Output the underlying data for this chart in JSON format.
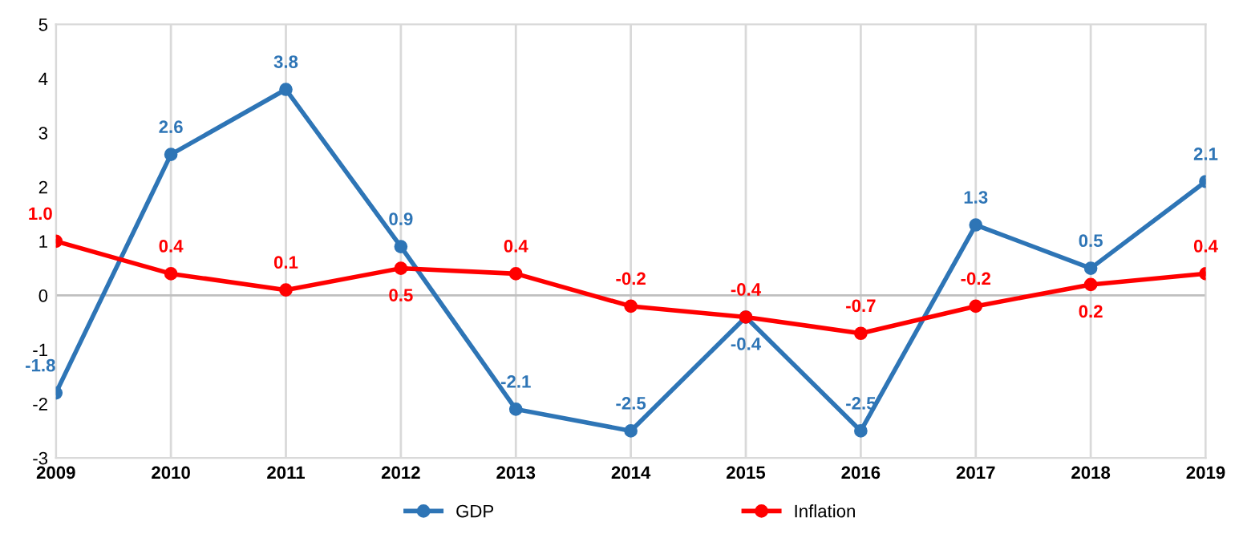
{
  "chart_data": {
    "type": "line",
    "categories": [
      "2009",
      "2010",
      "2011",
      "2012",
      "2013",
      "2014",
      "2015",
      "2016",
      "2017",
      "2018",
      "2019"
    ],
    "series": [
      {
        "name": "GDP",
        "color": "#2e75b6",
        "values": [
          -1.8,
          2.6,
          3.8,
          0.9,
          -2.1,
          -2.5,
          -0.4,
          -2.5,
          1.3,
          0.5,
          2.1
        ],
        "value_labels": [
          "-1.8",
          "2.6",
          "3.8",
          "0.9",
          "-2.1",
          "-2.5",
          "-0.4",
          "-2.5",
          "1.3",
          "0.5",
          "2.1"
        ]
      },
      {
        "name": "Inflation",
        "color": "#ff0000",
        "values": [
          1.0,
          0.4,
          0.1,
          0.5,
          0.4,
          -0.2,
          -0.4,
          -0.7,
          -0.2,
          0.2,
          0.4
        ],
        "value_labels": [
          "1.0",
          "0.4",
          "0.1",
          "0.5",
          "0.4",
          "-0.2",
          "-0.4",
          "-0.7",
          "-0.2",
          "0.2",
          "0.4"
        ]
      }
    ],
    "ylim": [
      -3,
      5
    ],
    "yticks": [
      -3,
      -2,
      -1,
      0,
      1,
      2,
      3,
      4,
      5
    ],
    "ref_lines": [
      {
        "axis": "y",
        "value": 0,
        "color": "#bfbfbf"
      }
    ],
    "grid": "x",
    "legend": "bottom",
    "marker": "circle",
    "line_style": "solid"
  }
}
